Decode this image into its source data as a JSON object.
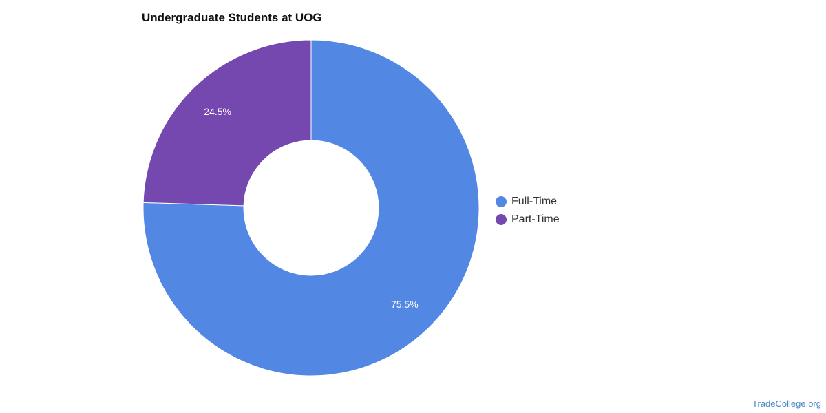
{
  "chart_data": {
    "type": "pie",
    "title": "Undergraduate Students at UOG",
    "donut": true,
    "slices": [
      {
        "name": "Full-Time",
        "value": 75.5,
        "label": "75.5%",
        "color": "#5287e3"
      },
      {
        "name": "Part-Time",
        "value": 24.5,
        "label": "24.5%",
        "color": "#7548b0"
      }
    ],
    "legend_position": "right",
    "source": "TradeCollege.org"
  }
}
